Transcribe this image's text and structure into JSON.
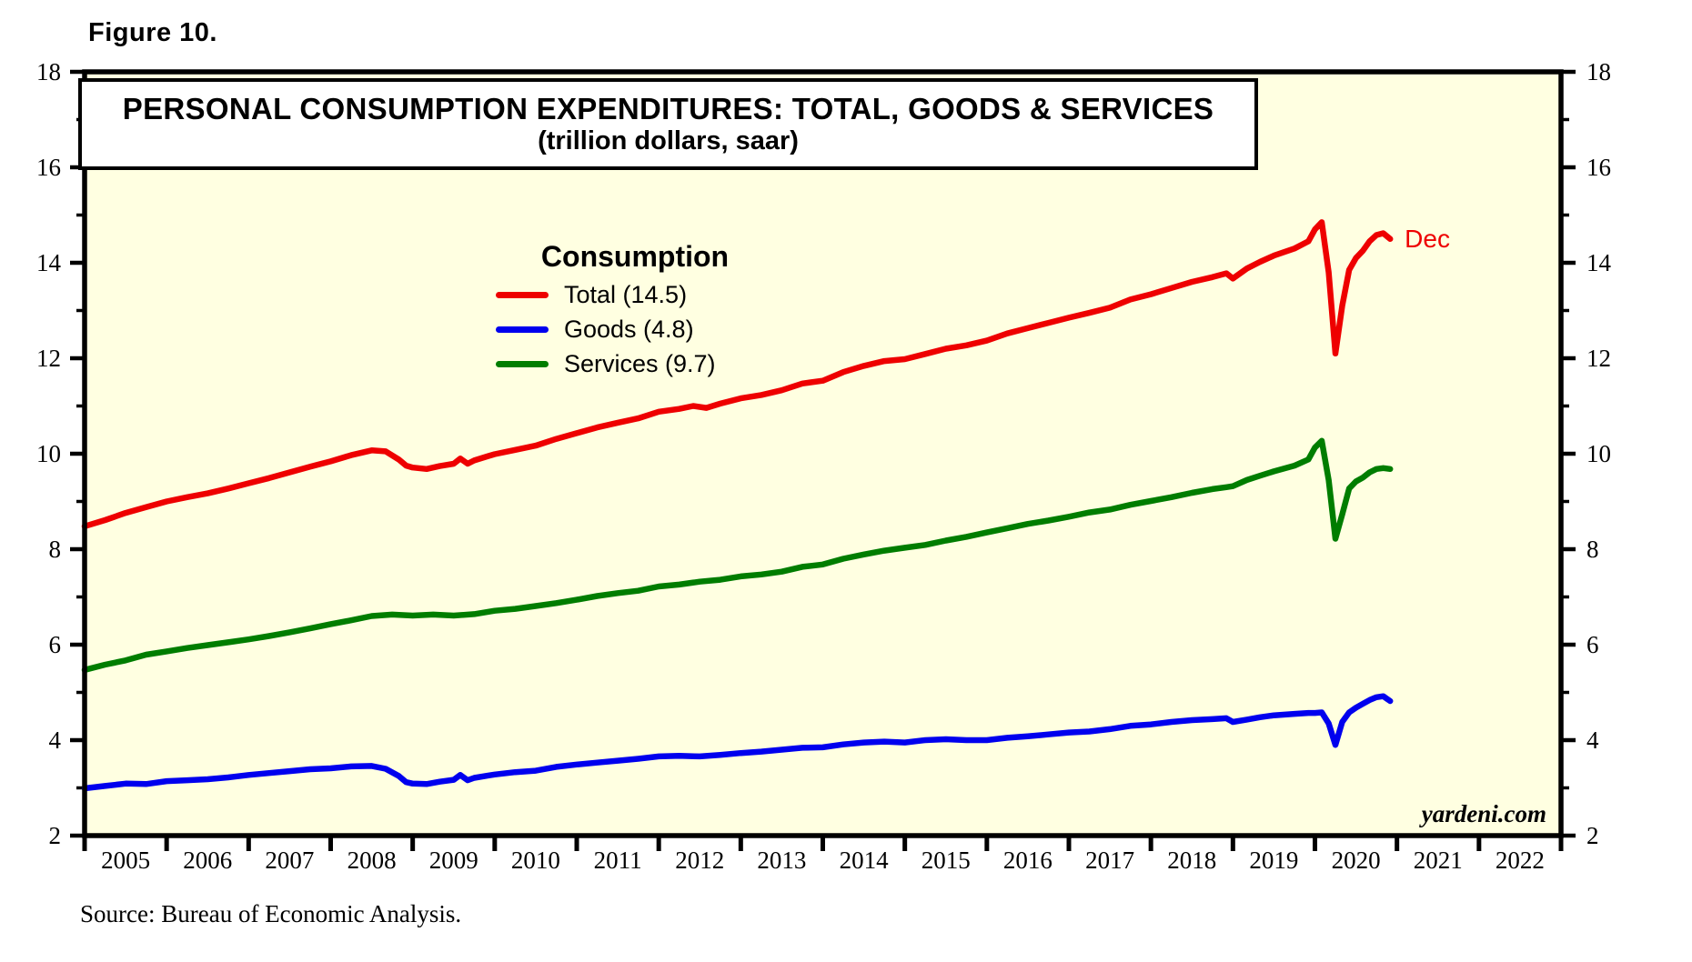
{
  "page": {
    "figure_label": "Figure 10.",
    "source": "Source: Bureau of Economic Analysis.",
    "watermark": "yardeni.com"
  },
  "title_box": {
    "line1": "PERSONAL CONSUMPTION EXPENDITURES: TOTAL, GOODS & SERVICES",
    "line2": "(trillion dollars, saar)"
  },
  "legend": {
    "heading": "Consumption",
    "entries": [
      {
        "label": "Total (14.5)",
        "color": "#EE0000"
      },
      {
        "label": "Goods (4.8)",
        "color": "#0000EE"
      },
      {
        "label": "Services (9.7)",
        "color": "#007D00"
      }
    ]
  },
  "annotation": {
    "label": "Dec",
    "color": "#EE0000",
    "t": 2020.917,
    "value": 14.5
  },
  "chart_data": {
    "type": "line",
    "title": "PERSONAL CONSUMPTION EXPENDITURES: TOTAL, GOODS & SERVICES",
    "subtitle": "(trillion dollars, saar)",
    "xlabel": "",
    "ylabel": "trillion dollars, saar",
    "x_domain": [
      2005,
      2023
    ],
    "y_domain": [
      2,
      18
    ],
    "y_major_ticks": [
      2,
      4,
      6,
      8,
      10,
      12,
      14,
      16,
      18
    ],
    "y_minor_ticks": [
      3,
      5,
      7,
      9,
      11,
      13,
      15,
      17
    ],
    "x_year_labels": [
      "2005",
      "2006",
      "2007",
      "2008",
      "2009",
      "2010",
      "2011",
      "2012",
      "2013",
      "2014",
      "2015",
      "2016",
      "2017",
      "2018",
      "2019",
      "2020",
      "2021",
      "2022"
    ],
    "grid": false,
    "legend_position": "upper-center-left",
    "background": "#FFFFE1",
    "last_point_label": "Dec",
    "series": [
      {
        "name": "Total",
        "last_value": 14.5,
        "color": "#EE0000",
        "points": [
          [
            2005.0,
            8.48
          ],
          [
            2005.25,
            8.61
          ],
          [
            2005.5,
            8.76
          ],
          [
            2005.75,
            8.88
          ],
          [
            2006.0,
            9.0
          ],
          [
            2006.25,
            9.09
          ],
          [
            2006.5,
            9.17
          ],
          [
            2006.75,
            9.27
          ],
          [
            2007.0,
            9.38
          ],
          [
            2007.25,
            9.49
          ],
          [
            2007.5,
            9.61
          ],
          [
            2007.75,
            9.73
          ],
          [
            2008.0,
            9.84
          ],
          [
            2008.25,
            9.97
          ],
          [
            2008.5,
            10.07
          ],
          [
            2008.67,
            10.05
          ],
          [
            2008.83,
            9.88
          ],
          [
            2008.92,
            9.75
          ],
          [
            2009.0,
            9.71
          ],
          [
            2009.17,
            9.68
          ],
          [
            2009.33,
            9.74
          ],
          [
            2009.5,
            9.79
          ],
          [
            2009.58,
            9.9
          ],
          [
            2009.67,
            9.79
          ],
          [
            2009.75,
            9.86
          ],
          [
            2009.92,
            9.95
          ],
          [
            2010.0,
            9.99
          ],
          [
            2010.25,
            10.08
          ],
          [
            2010.5,
            10.17
          ],
          [
            2010.75,
            10.31
          ],
          [
            2011.0,
            10.43
          ],
          [
            2011.25,
            10.55
          ],
          [
            2011.5,
            10.65
          ],
          [
            2011.75,
            10.74
          ],
          [
            2012.0,
            10.88
          ],
          [
            2012.25,
            10.94
          ],
          [
            2012.42,
            11.0
          ],
          [
            2012.58,
            10.96
          ],
          [
            2012.75,
            11.05
          ],
          [
            2013.0,
            11.16
          ],
          [
            2013.25,
            11.23
          ],
          [
            2013.5,
            11.33
          ],
          [
            2013.75,
            11.47
          ],
          [
            2014.0,
            11.53
          ],
          [
            2014.25,
            11.71
          ],
          [
            2014.5,
            11.84
          ],
          [
            2014.75,
            11.94
          ],
          [
            2015.0,
            11.98
          ],
          [
            2015.25,
            12.09
          ],
          [
            2015.5,
            12.2
          ],
          [
            2015.75,
            12.27
          ],
          [
            2016.0,
            12.37
          ],
          [
            2016.25,
            12.52
          ],
          [
            2016.5,
            12.63
          ],
          [
            2016.75,
            12.74
          ],
          [
            2017.0,
            12.85
          ],
          [
            2017.25,
            12.95
          ],
          [
            2017.5,
            13.06
          ],
          [
            2017.75,
            13.23
          ],
          [
            2018.0,
            13.34
          ],
          [
            2018.25,
            13.47
          ],
          [
            2018.5,
            13.6
          ],
          [
            2018.75,
            13.7
          ],
          [
            2018.92,
            13.78
          ],
          [
            2019.0,
            13.67
          ],
          [
            2019.17,
            13.88
          ],
          [
            2019.33,
            14.02
          ],
          [
            2019.5,
            14.15
          ],
          [
            2019.75,
            14.3
          ],
          [
            2019.92,
            14.45
          ],
          [
            2020.0,
            14.7
          ],
          [
            2020.083,
            14.85
          ],
          [
            2020.167,
            13.8
          ],
          [
            2020.25,
            12.1
          ],
          [
            2020.333,
            13.1
          ],
          [
            2020.417,
            13.85
          ],
          [
            2020.5,
            14.1
          ],
          [
            2020.583,
            14.25
          ],
          [
            2020.667,
            14.45
          ],
          [
            2020.75,
            14.58
          ],
          [
            2020.833,
            14.62
          ],
          [
            2020.917,
            14.5
          ]
        ]
      },
      {
        "name": "Goods",
        "last_value": 4.8,
        "color": "#0000EE",
        "points": [
          [
            2005.0,
            2.99
          ],
          [
            2005.25,
            3.04
          ],
          [
            2005.5,
            3.09
          ],
          [
            2005.75,
            3.08
          ],
          [
            2006.0,
            3.14
          ],
          [
            2006.25,
            3.16
          ],
          [
            2006.5,
            3.18
          ],
          [
            2006.75,
            3.22
          ],
          [
            2007.0,
            3.27
          ],
          [
            2007.25,
            3.31
          ],
          [
            2007.5,
            3.35
          ],
          [
            2007.75,
            3.39
          ],
          [
            2008.0,
            3.41
          ],
          [
            2008.25,
            3.45
          ],
          [
            2008.5,
            3.46
          ],
          [
            2008.67,
            3.4
          ],
          [
            2008.83,
            3.25
          ],
          [
            2008.92,
            3.12
          ],
          [
            2009.0,
            3.09
          ],
          [
            2009.17,
            3.08
          ],
          [
            2009.33,
            3.13
          ],
          [
            2009.5,
            3.17
          ],
          [
            2009.58,
            3.27
          ],
          [
            2009.67,
            3.16
          ],
          [
            2009.75,
            3.21
          ],
          [
            2009.92,
            3.26
          ],
          [
            2010.0,
            3.28
          ],
          [
            2010.25,
            3.33
          ],
          [
            2010.5,
            3.36
          ],
          [
            2010.75,
            3.44
          ],
          [
            2011.0,
            3.49
          ],
          [
            2011.25,
            3.53
          ],
          [
            2011.5,
            3.57
          ],
          [
            2011.75,
            3.61
          ],
          [
            2012.0,
            3.66
          ],
          [
            2012.25,
            3.67
          ],
          [
            2012.5,
            3.66
          ],
          [
            2012.75,
            3.69
          ],
          [
            2013.0,
            3.73
          ],
          [
            2013.25,
            3.76
          ],
          [
            2013.5,
            3.8
          ],
          [
            2013.75,
            3.84
          ],
          [
            2014.0,
            3.85
          ],
          [
            2014.25,
            3.91
          ],
          [
            2014.5,
            3.95
          ],
          [
            2014.75,
            3.97
          ],
          [
            2015.0,
            3.95
          ],
          [
            2015.25,
            4.0
          ],
          [
            2015.5,
            4.02
          ],
          [
            2015.75,
            4.0
          ],
          [
            2016.0,
            4.0
          ],
          [
            2016.25,
            4.05
          ],
          [
            2016.5,
            4.08
          ],
          [
            2016.75,
            4.12
          ],
          [
            2017.0,
            4.16
          ],
          [
            2017.25,
            4.18
          ],
          [
            2017.5,
            4.23
          ],
          [
            2017.75,
            4.3
          ],
          [
            2018.0,
            4.33
          ],
          [
            2018.25,
            4.38
          ],
          [
            2018.5,
            4.42
          ],
          [
            2018.75,
            4.44
          ],
          [
            2018.92,
            4.46
          ],
          [
            2019.0,
            4.38
          ],
          [
            2019.17,
            4.43
          ],
          [
            2019.33,
            4.48
          ],
          [
            2019.5,
            4.52
          ],
          [
            2019.75,
            4.55
          ],
          [
            2019.92,
            4.57
          ],
          [
            2020.0,
            4.57
          ],
          [
            2020.083,
            4.58
          ],
          [
            2020.167,
            4.35
          ],
          [
            2020.25,
            3.9
          ],
          [
            2020.333,
            4.38
          ],
          [
            2020.417,
            4.58
          ],
          [
            2020.5,
            4.68
          ],
          [
            2020.583,
            4.76
          ],
          [
            2020.667,
            4.84
          ],
          [
            2020.75,
            4.9
          ],
          [
            2020.833,
            4.92
          ],
          [
            2020.917,
            4.82
          ]
        ]
      },
      {
        "name": "Services",
        "last_value": 9.7,
        "color": "#007D00",
        "points": [
          [
            2005.0,
            5.47
          ],
          [
            2005.25,
            5.58
          ],
          [
            2005.5,
            5.67
          ],
          [
            2005.75,
            5.79
          ],
          [
            2006.0,
            5.86
          ],
          [
            2006.25,
            5.93
          ],
          [
            2006.5,
            5.99
          ],
          [
            2006.75,
            6.05
          ],
          [
            2007.0,
            6.11
          ],
          [
            2007.25,
            6.18
          ],
          [
            2007.5,
            6.26
          ],
          [
            2007.75,
            6.34
          ],
          [
            2008.0,
            6.43
          ],
          [
            2008.25,
            6.51
          ],
          [
            2008.5,
            6.6
          ],
          [
            2008.75,
            6.63
          ],
          [
            2009.0,
            6.61
          ],
          [
            2009.25,
            6.63
          ],
          [
            2009.5,
            6.61
          ],
          [
            2009.75,
            6.64
          ],
          [
            2010.0,
            6.71
          ],
          [
            2010.25,
            6.75
          ],
          [
            2010.5,
            6.81
          ],
          [
            2010.75,
            6.87
          ],
          [
            2011.0,
            6.94
          ],
          [
            2011.25,
            7.02
          ],
          [
            2011.5,
            7.08
          ],
          [
            2011.75,
            7.13
          ],
          [
            2012.0,
            7.22
          ],
          [
            2012.25,
            7.26
          ],
          [
            2012.5,
            7.32
          ],
          [
            2012.75,
            7.36
          ],
          [
            2013.0,
            7.43
          ],
          [
            2013.25,
            7.47
          ],
          [
            2013.5,
            7.53
          ],
          [
            2013.75,
            7.63
          ],
          [
            2014.0,
            7.68
          ],
          [
            2014.25,
            7.8
          ],
          [
            2014.5,
            7.89
          ],
          [
            2014.75,
            7.97
          ],
          [
            2015.0,
            8.03
          ],
          [
            2015.25,
            8.09
          ],
          [
            2015.5,
            8.18
          ],
          [
            2015.75,
            8.26
          ],
          [
            2016.0,
            8.35
          ],
          [
            2016.25,
            8.44
          ],
          [
            2016.5,
            8.53
          ],
          [
            2016.75,
            8.6
          ],
          [
            2017.0,
            8.68
          ],
          [
            2017.25,
            8.77
          ],
          [
            2017.5,
            8.83
          ],
          [
            2017.75,
            8.93
          ],
          [
            2018.0,
            9.01
          ],
          [
            2018.25,
            9.09
          ],
          [
            2018.5,
            9.18
          ],
          [
            2018.75,
            9.26
          ],
          [
            2018.92,
            9.3
          ],
          [
            2019.0,
            9.32
          ],
          [
            2019.17,
            9.45
          ],
          [
            2019.33,
            9.54
          ],
          [
            2019.5,
            9.63
          ],
          [
            2019.75,
            9.75
          ],
          [
            2019.92,
            9.88
          ],
          [
            2020.0,
            10.13
          ],
          [
            2020.083,
            10.27
          ],
          [
            2020.167,
            9.45
          ],
          [
            2020.25,
            8.22
          ],
          [
            2020.333,
            8.73
          ],
          [
            2020.417,
            9.27
          ],
          [
            2020.5,
            9.42
          ],
          [
            2020.583,
            9.5
          ],
          [
            2020.667,
            9.61
          ],
          [
            2020.75,
            9.68
          ],
          [
            2020.833,
            9.7
          ],
          [
            2020.917,
            9.68
          ]
        ]
      }
    ]
  }
}
